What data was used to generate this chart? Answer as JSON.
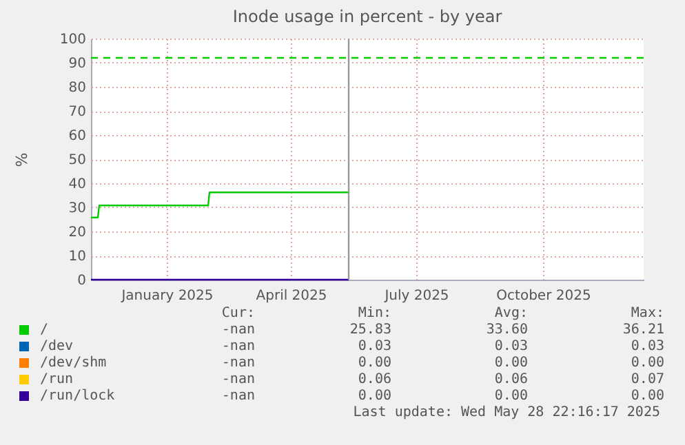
{
  "chart_data": {
    "type": "line",
    "title": "Inode usage in percent - by year",
    "ylabel": "%",
    "x": [
      "2024-11-22",
      "2024-11-27",
      "2024-11-28",
      "2025-02-15",
      "2025-02-16",
      "2025-05-28"
    ],
    "series": [
      {
        "name": "/",
        "color": "#00cc00",
        "values": [
          25.8,
          25.8,
          30.8,
          30.8,
          36.2,
          36.2
        ]
      },
      {
        "name": "/dev",
        "color": "#0066b3",
        "values": [
          null,
          null,
          null,
          null,
          null,
          null
        ]
      },
      {
        "name": "/dev/shm",
        "color": "#ff8000",
        "values": [
          null,
          null,
          null,
          null,
          null,
          null
        ]
      },
      {
        "name": "/run",
        "color": "#ffcc00",
        "values": [
          null,
          null,
          null,
          null,
          null,
          null
        ]
      },
      {
        "name": "/run/lock",
        "color": "#330099",
        "values": [
          0,
          0,
          0,
          0,
          0,
          0
        ]
      }
    ],
    "xlim": [
      "2024-11-22",
      "2025-12-28"
    ],
    "xticks": [
      {
        "value": "2025-01-16",
        "label": "January 2025"
      },
      {
        "value": "2025-04-16",
        "label": "April 2025"
      },
      {
        "value": "2025-07-16",
        "label": "July 2025"
      },
      {
        "value": "2025-10-16",
        "label": "October 2025"
      }
    ],
    "ylim": [
      0,
      100
    ],
    "yticks": [
      0,
      10,
      20,
      30,
      40,
      50,
      60,
      70,
      80,
      90,
      100
    ],
    "grid": true,
    "legend": "bottom",
    "marker": "none",
    "line_style": "solid",
    "ref_lines": [
      {
        "axis": "y",
        "value": 92,
        "color": "#00cc00",
        "line_style": "dashed"
      },
      {
        "axis": "x",
        "value": "2025-05-28",
        "color": "#999999",
        "line_style": "solid"
      }
    ],
    "annotations": [
      "Cur:",
      "Min:",
      "Avg:",
      "Max:",
      "-nan",
      "25.83",
      "33.60",
      "36.21",
      "-nan",
      "0.03",
      "0.03",
      "0.03",
      "-nan",
      "0.00",
      "0.00",
      "0.00",
      "-nan",
      "0.06",
      "0.06",
      "0.07",
      "-nan",
      "0.00",
      "0.00",
      "0.00",
      "Last update: Wed May 28 22:16:17 2025"
    ]
  }
}
